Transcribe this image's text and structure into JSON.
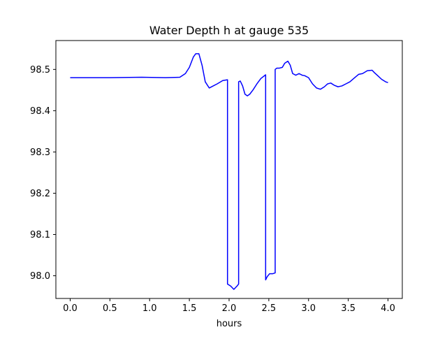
{
  "chart_data": {
    "type": "line",
    "title": "Water Depth h at gauge 535",
    "xlabel": "hours",
    "ylabel": "",
    "xlim": [
      -0.18,
      4.18
    ],
    "ylim": [
      97.945,
      98.57
    ],
    "xticks": [
      0.0,
      0.5,
      1.0,
      1.5,
      2.0,
      2.5,
      3.0,
      3.5,
      4.0
    ],
    "xtick_labels": [
      "0.0",
      "0.5",
      "1.0",
      "1.5",
      "2.0",
      "2.5",
      "3.0",
      "3.5",
      "4.0"
    ],
    "yticks": [
      98.0,
      98.1,
      98.2,
      98.3,
      98.4,
      98.5
    ],
    "ytick_labels": [
      "98.0",
      "98.1",
      "98.2",
      "98.3",
      "98.4",
      "98.5"
    ],
    "grid": false,
    "series": [
      {
        "color": "#0000ff",
        "x": [
          0.0,
          0.5,
          0.9,
          1.2,
          1.38,
          1.45,
          1.5,
          1.55,
          1.58,
          1.62,
          1.66,
          1.7,
          1.75,
          1.8,
          1.85,
          1.92,
          1.98,
          1.98,
          2.02,
          2.06,
          2.1,
          2.12,
          2.12,
          2.14,
          2.17,
          2.2,
          2.23,
          2.26,
          2.3,
          2.35,
          2.4,
          2.46,
          2.46,
          2.48,
          2.51,
          2.55,
          2.58,
          2.58,
          2.6,
          2.63,
          2.67,
          2.7,
          2.74,
          2.77,
          2.8,
          2.84,
          2.88,
          2.92,
          2.95,
          3.0,
          3.05,
          3.1,
          3.15,
          3.2,
          3.24,
          3.28,
          3.32,
          3.37,
          3.42,
          3.47,
          3.52,
          3.58,
          3.63,
          3.68,
          3.74,
          3.8,
          3.83,
          3.87,
          3.92,
          3.97,
          4.0
        ],
        "y": [
          98.48,
          98.48,
          98.481,
          98.48,
          98.481,
          98.49,
          98.505,
          98.53,
          98.538,
          98.538,
          98.51,
          98.47,
          98.455,
          98.46,
          98.465,
          98.473,
          98.475,
          97.98,
          97.975,
          97.967,
          97.975,
          97.98,
          98.47,
          98.472,
          98.46,
          98.44,
          98.436,
          98.44,
          98.45,
          98.465,
          98.478,
          98.487,
          97.99,
          97.998,
          98.005,
          98.005,
          98.007,
          98.5,
          98.503,
          98.503,
          98.505,
          98.515,
          98.52,
          98.51,
          98.49,
          98.486,
          98.49,
          98.486,
          98.485,
          98.48,
          98.465,
          98.455,
          98.452,
          98.458,
          98.465,
          98.467,
          98.462,
          98.458,
          98.46,
          98.465,
          98.47,
          98.48,
          98.488,
          98.49,
          98.497,
          98.498,
          98.492,
          98.485,
          98.476,
          98.47,
          98.468
        ]
      }
    ]
  }
}
